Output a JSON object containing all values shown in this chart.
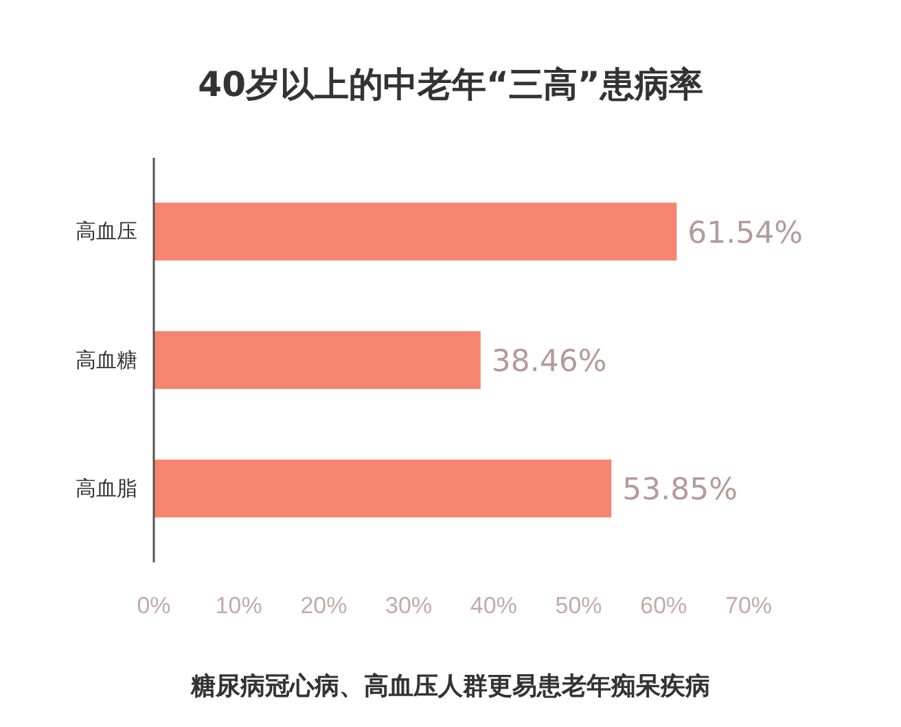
{
  "chart_data": {
    "type": "bar",
    "orientation": "horizontal",
    "title": "40岁以上的中老年“三高”患病率",
    "categories": [
      "高血压",
      "高血糖",
      "高血脂"
    ],
    "values": [
      61.54,
      38.46,
      53.85
    ],
    "color": "#f6846f",
    "value_labels": [
      "61.54%",
      "38.46%",
      "53.85%"
    ],
    "xlim": [
      0,
      70
    ],
    "xticks": [
      {
        "value": 0,
        "label": "0%"
      },
      {
        "value": 10,
        "label": "10%"
      },
      {
        "value": 20,
        "label": "20%"
      },
      {
        "value": 30,
        "label": "30%"
      },
      {
        "value": 40,
        "label": "40%"
      },
      {
        "value": 50,
        "label": "50%"
      },
      {
        "value": 60,
        "label": "60%"
      },
      {
        "value": 70,
        "label": "70%"
      }
    ],
    "grid": false,
    "annotations": [
      "糖尿病冠心病、高血压人群更易患老年痴呆疾病"
    ]
  }
}
